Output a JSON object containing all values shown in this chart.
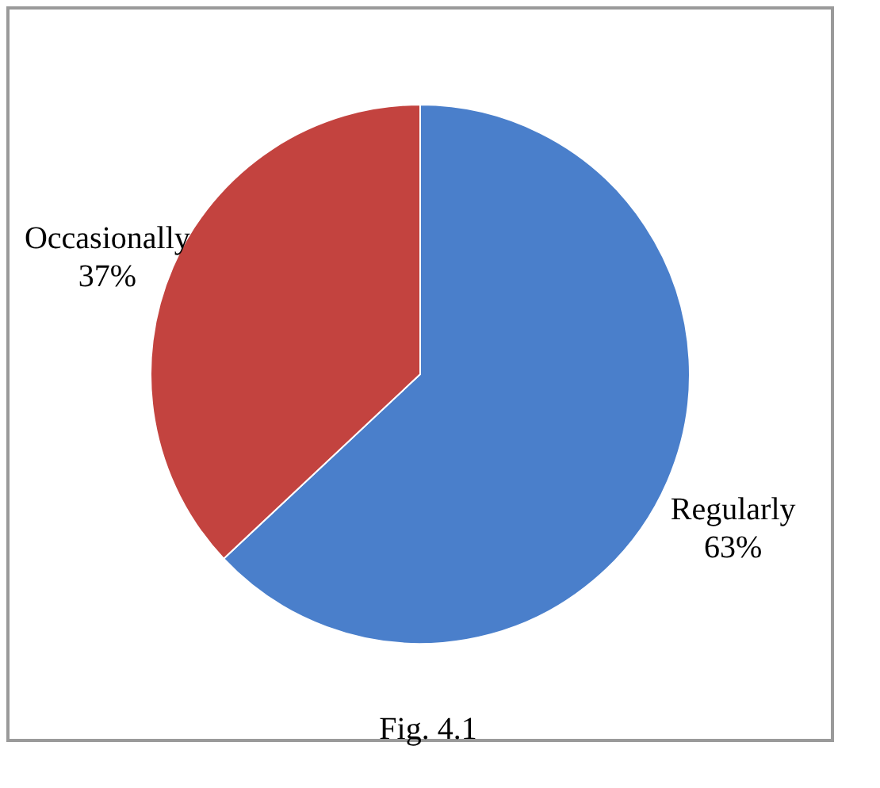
{
  "chart_data": {
    "type": "pie",
    "categories": [
      "Regularly",
      "Occasionally"
    ],
    "values": [
      63,
      37
    ],
    "colors": [
      "#4a7fcb",
      "#c3433f"
    ],
    "value_labels": [
      "63%",
      "37%"
    ],
    "annotations": [
      "Fig. 4.1"
    ],
    "legend": false
  }
}
